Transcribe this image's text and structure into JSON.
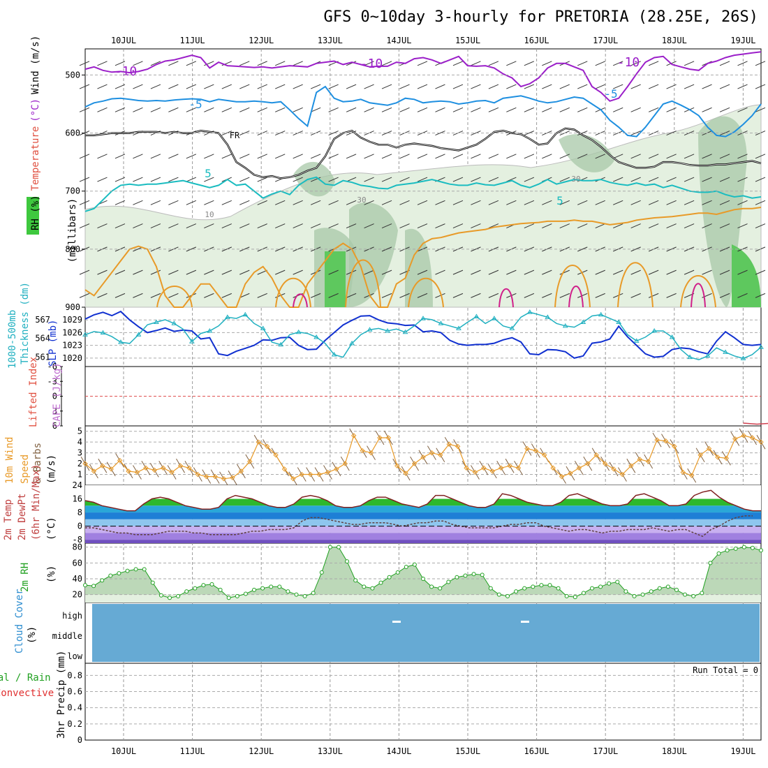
{
  "title": "GFS 0~10day 3-hourly for PRETORIA (28.25E, 26S)",
  "dates": [
    "10JUL",
    "11JUL",
    "12JUL",
    "13JUL",
    "14JUL",
    "15JUL",
    "16JUL",
    "17JUL",
    "18JUL",
    "19JUL"
  ],
  "chart_data": [
    {
      "type": "contour",
      "name": "upper-air",
      "ylabel_parts": [
        "RH (%)",
        "Temperature",
        "(°C)",
        "Wind (m/s)",
        "(millibars)"
      ],
      "yticks": [
        500,
        600,
        700,
        800,
        900
      ],
      "ylim": [
        455,
        900
      ],
      "fr_label": "FR",
      "contour_labels": [
        "-10",
        "-10",
        "-10",
        "-5",
        "-5",
        "5",
        "5",
        "30",
        "30",
        "10"
      ],
      "isotherms": [
        {
          "name": "-10",
          "color": "#9b1fc9",
          "levels": [
            490,
            486,
            492,
            495,
            494,
            496,
            494,
            490,
            482,
            476,
            474,
            470,
            466,
            470,
            488,
            478,
            484,
            485,
            486,
            487,
            486,
            488,
            486,
            484,
            485,
            486,
            480,
            478,
            476,
            482,
            478,
            482,
            486,
            485,
            485,
            478,
            480,
            472,
            470,
            474,
            480,
            474,
            468,
            484,
            485,
            484,
            488,
            498,
            505,
            520,
            515,
            505,
            488,
            480,
            480,
            486,
            492,
            520,
            530,
            545,
            540,
            520,
            498,
            478,
            470,
            468,
            482,
            486,
            490,
            492,
            480,
            476,
            470,
            466,
            464,
            462,
            460
          ]
        },
        {
          "name": "-5",
          "color": "#1e8fe0",
          "levels": [
            555,
            548,
            545,
            541,
            540,
            542,
            544,
            545,
            544,
            545,
            543,
            542,
            541,
            542,
            546,
            542,
            544,
            546,
            546,
            545,
            546,
            548,
            546,
            560,
            575,
            588,
            530,
            520,
            540,
            546,
            545,
            542,
            548,
            550,
            552,
            548,
            540,
            542,
            548,
            546,
            545,
            546,
            550,
            548,
            545,
            544,
            548,
            540,
            538,
            536,
            540,
            545,
            548,
            546,
            542,
            538,
            540,
            550,
            560,
            578,
            590,
            604,
            606,
            590,
            570,
            550,
            545,
            552,
            560,
            570,
            590,
            604,
            606,
            598,
            585,
            570,
            550
          ]
        },
        {
          "name": "5",
          "color": "#1abcc0",
          "levels": [
            735,
            730,
            715,
            700,
            690,
            688,
            690,
            688,
            688,
            686,
            684,
            682,
            686,
            690,
            694,
            690,
            680,
            690,
            688,
            700,
            712,
            705,
            700,
            706,
            690,
            680,
            676,
            688,
            690,
            682,
            685,
            690,
            692,
            695,
            696,
            690,
            688,
            686,
            683,
            680,
            684,
            688,
            690,
            690,
            686,
            689,
            690,
            686,
            682,
            690,
            694,
            688,
            680,
            688,
            684,
            680,
            682,
            682,
            680,
            685,
            688,
            690,
            686,
            690,
            688,
            694,
            690,
            695,
            700,
            702,
            702,
            700,
            706,
            710,
            708,
            712,
            710
          ]
        },
        {
          "name": "FR",
          "color": "#000000",
          "levels": [
            604,
            604,
            602,
            600,
            600,
            600,
            598,
            598,
            598,
            600,
            598,
            600,
            600,
            596,
            598,
            600,
            620,
            650,
            660,
            672,
            676,
            674,
            678,
            676,
            672,
            665,
            660,
            640,
            610,
            600,
            596,
            608,
            615,
            620,
            620,
            625,
            620,
            618,
            620,
            622,
            626,
            628,
            630,
            625,
            620,
            610,
            598,
            596,
            600,
            602,
            610,
            620,
            618,
            600,
            592,
            594,
            604,
            612,
            624,
            638,
            650,
            655,
            660,
            660,
            658,
            650,
            650,
            652,
            655,
            656,
            656,
            654,
            654,
            652,
            650,
            648,
            652
          ]
        },
        {
          "name": "10",
          "color": "#e89a28",
          "levels": [
            870,
            880,
            860,
            840,
            820,
            800,
            795,
            800,
            830,
            880,
            900,
            900,
            880,
            860,
            860,
            880,
            900,
            900,
            860,
            840,
            830,
            850,
            880,
            900,
            900,
            860,
            840,
            820,
            800,
            790,
            800,
            830,
            880,
            900,
            900,
            860,
            850,
            810,
            790,
            782,
            780,
            776,
            772,
            770,
            768,
            766,
            762,
            760,
            758,
            756,
            755,
            754,
            752,
            752,
            752,
            750,
            752,
            752,
            755,
            758,
            756,
            754,
            750,
            748,
            746,
            745,
            744,
            742,
            740,
            738,
            738,
            740,
            736,
            732,
            730,
            730,
            728
          ]
        }
      ]
    },
    {
      "type": "line",
      "name": "slp-thickness",
      "ylabel_parts": [
        "1000-500mb",
        "Thickness (dm)",
        "SLP (mb)"
      ],
      "left_ticks": [
        561,
        564,
        567
      ],
      "right_ticks": [
        1020,
        1023,
        1026,
        1029
      ],
      "series": [
        {
          "name": "SLP (mb)",
          "color": "#1030d0",
          "axis": "right",
          "values": [
            1029.2,
            1030.2,
            1030.8,
            1030.0,
            1031.0,
            1029.0,
            1027.4,
            1026.0,
            1026.5,
            1027.1,
            1026.3,
            1026.6,
            1026.4,
            1024.5,
            1024.8,
            1021.0,
            1020.6,
            1021.6,
            1022.3,
            1023.0,
            1024.3,
            1024.2,
            1024.8,
            1024.9,
            1023.0,
            1022.0,
            1022.1,
            1024.2,
            1026.0,
            1027.8,
            1028.9,
            1029.9,
            1030.0,
            1029.0,
            1028.3,
            1028.1,
            1027.7,
            1027.8,
            1026.2,
            1026.4,
            1026.0,
            1024.2,
            1023.3,
            1023.0,
            1023.2,
            1023.2,
            1023.5,
            1024.3,
            1024.8,
            1023.8,
            1021.0,
            1020.8,
            1022.0,
            1021.9,
            1021.5,
            1020.0,
            1020.5,
            1023.5,
            1023.8,
            1024.5,
            1027.5,
            1025.0,
            1023.0,
            1021.0,
            1020.2,
            1020.4,
            1022.0,
            1022.4,
            1022.2,
            1021.5,
            1021.0,
            1024.0,
            1026.2,
            1024.8,
            1023.2,
            1023.0,
            1023.2
          ]
        },
        {
          "name": "1000-500mb Thickness (dm)",
          "color": "#20b0c0",
          "axis": "left",
          "values": [
            564.6,
            565.1,
            564.9,
            564.3,
            563.4,
            563.2,
            564.6,
            566.2,
            566.6,
            567.0,
            566.4,
            565.5,
            563.5,
            564.8,
            565.2,
            566.0,
            567.4,
            567.2,
            567.8,
            566.4,
            565.6,
            563.4,
            563.0,
            564.6,
            565.0,
            564.8,
            564.2,
            563.2,
            561.4,
            561.0,
            563.2,
            564.6,
            565.4,
            565.6,
            565.2,
            565.5,
            565.0,
            566.0,
            567.2,
            567.0,
            566.4,
            566.0,
            565.6,
            566.6,
            567.5,
            566.4,
            567.2,
            566.0,
            565.6,
            567.4,
            568.2,
            567.8,
            567.4,
            566.4,
            566.0,
            565.8,
            566.6,
            567.6,
            567.8,
            567.2,
            566.6,
            564.6,
            563.6,
            564.2,
            565.2,
            565.2,
            564.2,
            562.2,
            561.0,
            560.6,
            561.2,
            562.5,
            561.8,
            561.2,
            560.8,
            561.4,
            562.6
          ]
        }
      ]
    },
    {
      "type": "line",
      "name": "lifted-index-cape",
      "ylabel_parts": [
        "Lifted Index",
        "CAPE (J/kg)"
      ],
      "yticks": [
        "-6",
        "-3",
        "0",
        "3",
        "6"
      ],
      "ylim": [
        -6,
        6
      ],
      "series": [
        {
          "name": "CAPE (J/kg)",
          "color": "#d04050",
          "points": [
            [
              9.0,
              4.0
            ],
            [
              9.2,
              2.5
            ],
            [
              9.4,
              3.8
            ]
          ]
        }
      ],
      "baseline_value": 0
    },
    {
      "type": "line",
      "name": "wind-10m",
      "ylabel_parts": [
        "10m Wind",
        "Speed",
        "& Barbs",
        "(m/s)"
      ],
      "yticks": [
        1,
        2,
        3,
        4,
        5
      ],
      "ylim": [
        0,
        5.5
      ],
      "series": [
        {
          "name": "10m Wind Speed",
          "color": "#e89a28",
          "values": [
            2.0,
            1.3,
            1.8,
            1.5,
            2.3,
            1.3,
            1.2,
            1.6,
            1.4,
            1.6,
            1.2,
            1.8,
            1.6,
            1.0,
            0.8,
            0.8,
            0.6,
            0.7,
            1.3,
            2.2,
            4.0,
            3.6,
            2.8,
            1.5,
            0.6,
            1.0,
            1.0,
            1.0,
            1.2,
            1.5,
            2.0,
            4.6,
            3.2,
            3.0,
            4.4,
            4.4,
            1.8,
            1.1,
            2.0,
            2.6,
            3.0,
            2.8,
            3.8,
            3.6,
            1.6,
            1.2,
            1.6,
            1.3,
            1.6,
            1.8,
            1.6,
            3.4,
            3.2,
            2.8,
            1.6,
            0.8,
            1.1,
            1.6,
            2.0,
            2.8,
            2.0,
            1.5,
            1.0,
            1.8,
            2.4,
            2.2,
            4.2,
            4.1,
            3.6,
            1.2,
            0.9,
            2.8,
            3.4,
            2.6,
            2.5,
            4.3,
            4.6,
            4.4,
            4.0
          ]
        }
      ]
    },
    {
      "type": "area",
      "name": "temp-dewpoint",
      "ylabel_parts": [
        "2m Temp",
        "2m DewPt",
        "(6hr Min/Max)",
        "(°C)"
      ],
      "yticks": [
        -8,
        0,
        8,
        16,
        24
      ],
      "ylim": [
        -10,
        24
      ],
      "series": [
        {
          "name": "2m Temp",
          "color": "#802020",
          "values": [
            15,
            14,
            12,
            11,
            10,
            9,
            9,
            13,
            16,
            17,
            16,
            14,
            12,
            11,
            10,
            10,
            11,
            16,
            18,
            17,
            16,
            14,
            12,
            11,
            11,
            13,
            17,
            18,
            17,
            15,
            12,
            11,
            11,
            12,
            15,
            17,
            17,
            15,
            13,
            12,
            11,
            13,
            18,
            18,
            16,
            14,
            12,
            11,
            11,
            13,
            19,
            18,
            16,
            14,
            13,
            12,
            12,
            14,
            18,
            19,
            17,
            15,
            13,
            12,
            12,
            13,
            18,
            19,
            17,
            15,
            12,
            12,
            13,
            18,
            20,
            21,
            17,
            14,
            12,
            10,
            9,
            9
          ]
        },
        {
          "name": "2m DewPt",
          "color": "#604040",
          "values": [
            -1,
            -1,
            -2,
            -3,
            -4,
            -4,
            -5,
            -5,
            -5,
            -4,
            -3,
            -3,
            -3,
            -4,
            -4,
            -5,
            -5,
            -5,
            -5,
            -4,
            -3,
            -3,
            -2,
            -2,
            -2,
            -1,
            3,
            5,
            5,
            4,
            3,
            2,
            1,
            1,
            2,
            2,
            2,
            1,
            0,
            1,
            2,
            2,
            3,
            3,
            1,
            0,
            -1,
            -1,
            -1,
            -1,
            0,
            1,
            1,
            2,
            2,
            0,
            -1,
            -2,
            -3,
            -2,
            -2,
            -3,
            -4,
            -3,
            -3,
            -2,
            -2,
            -2,
            -1,
            -2,
            -3,
            -2,
            -2,
            -4,
            -6,
            -2,
            0,
            3,
            5,
            6,
            6
          ]
        }
      ]
    },
    {
      "type": "area",
      "name": "rh-2m",
      "ylabel_parts": [
        "2m RH",
        "(%)"
      ],
      "yticks": [
        20,
        40,
        60,
        80
      ],
      "ylim": [
        10,
        85
      ],
      "series": [
        {
          "name": "2m RH",
          "color": "#20a020",
          "values": [
            32,
            31,
            38,
            44,
            47,
            50,
            52,
            52,
            35,
            19,
            16,
            18,
            24,
            28,
            32,
            33,
            26,
            16,
            18,
            21,
            26,
            28,
            30,
            30,
            24,
            20,
            18,
            22,
            48,
            80,
            80,
            62,
            38,
            30,
            28,
            35,
            42,
            48,
            55,
            58,
            40,
            30,
            28,
            36,
            42,
            44,
            46,
            45,
            28,
            20,
            18,
            24,
            28,
            30,
            32,
            32,
            28,
            18,
            17,
            22,
            28,
            30,
            34,
            36,
            24,
            18,
            20,
            24,
            28,
            30,
            26,
            20,
            18,
            22,
            60,
            72,
            76,
            78,
            80,
            79,
            76
          ]
        }
      ]
    },
    {
      "type": "heatmap",
      "name": "cloud-cover",
      "ylabel_parts": [
        "Cloud Cover",
        "(%)"
      ],
      "ytick_labels": [
        "high",
        "middle",
        "low"
      ],
      "fill_color": "#66aad4"
    },
    {
      "type": "bar",
      "name": "precip-3hr",
      "ylabel_parts": [
        "Total / Rain",
        "Convective",
        "3hr Precip (mm)"
      ],
      "yticks": [
        "0",
        "0.2",
        "0.4",
        "0.6",
        "0.8"
      ],
      "ylim": [
        0,
        0.95
      ],
      "run_total_label": "Run Total = 0",
      "values": []
    }
  ]
}
